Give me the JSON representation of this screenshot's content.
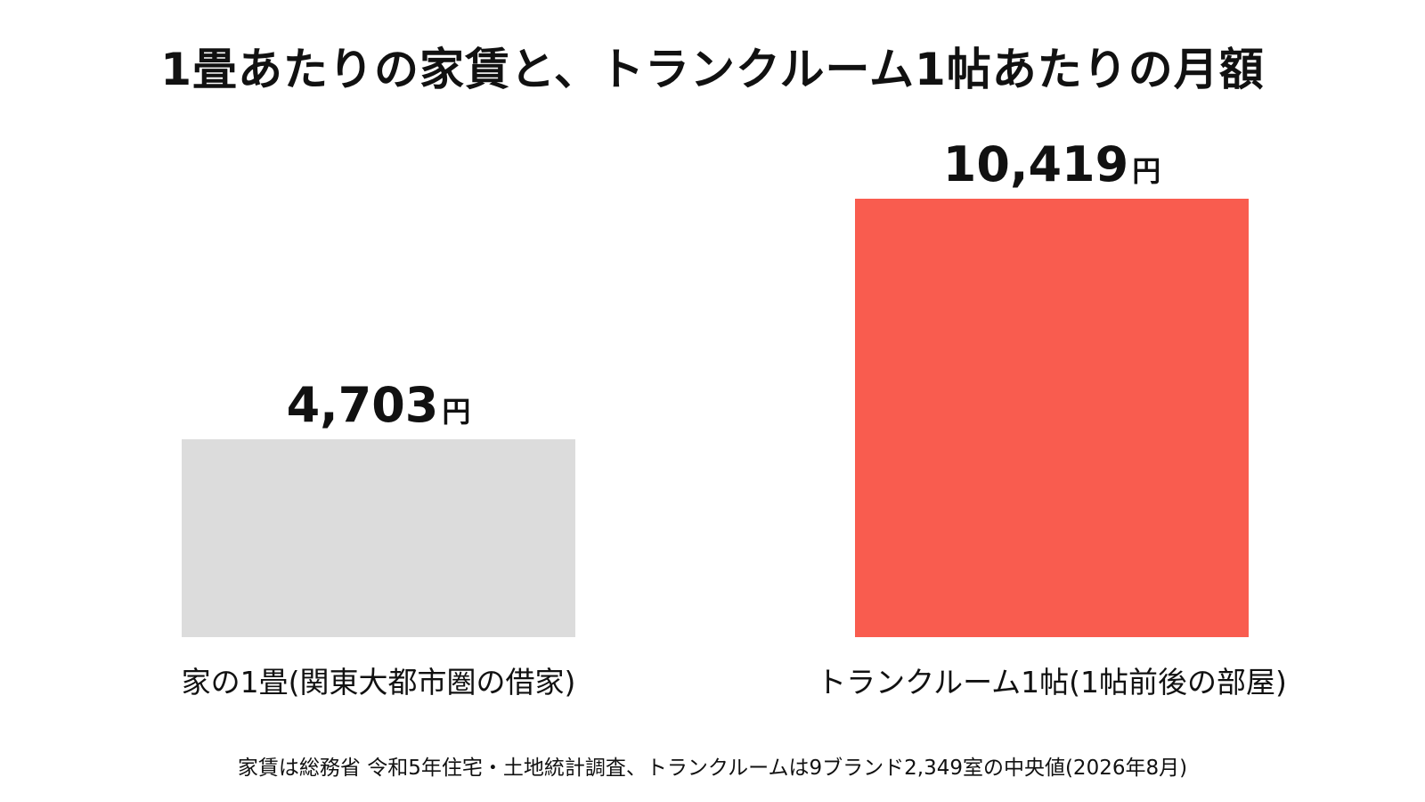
{
  "chart_data": {
    "type": "bar",
    "title": "1畳あたりの家賃と、トランクルーム1帖あたりの月額",
    "categories": [
      "家の1畳(関東大都市圏の借家)",
      "トランクルーム1帖(1帖前後の部屋)"
    ],
    "values": [
      4703,
      10419
    ],
    "value_labels": [
      "4,703",
      "10,419"
    ],
    "unit": "円",
    "colors": [
      "#dcdcdc",
      "#f95c4f"
    ],
    "ylim": [
      0,
      10419
    ],
    "grid": false,
    "xlabel": "",
    "ylabel": "",
    "footnote": "家賃は総務省 令和5年住宅・土地統計調査、トランクルームは9ブランド2,349室の中央値(2026年8月)"
  }
}
